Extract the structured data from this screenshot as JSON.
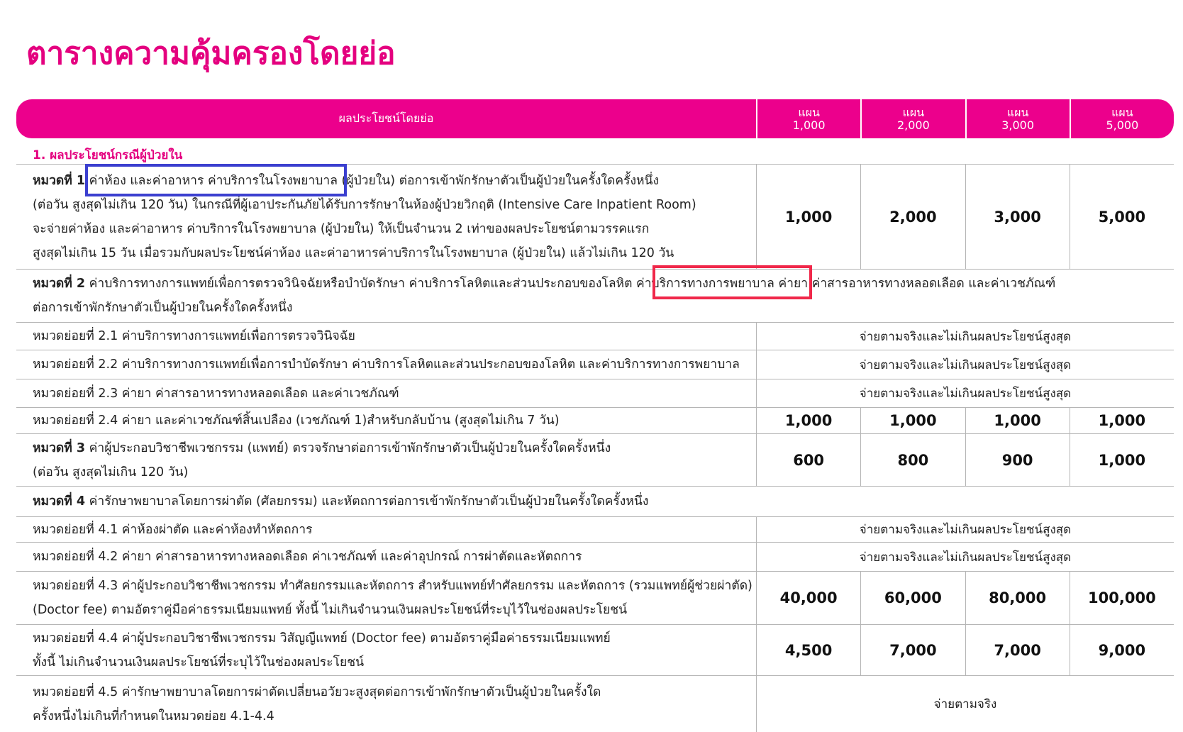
{
  "title": "ตารางความคุ้มครองโดยย่อ",
  "header": {
    "benefit_label": "ผลประโยชน์โดยย่อ",
    "plans": [
      {
        "prefix": "แผน",
        "amount": "1,000"
      },
      {
        "prefix": "แผน",
        "amount": "2,000"
      },
      {
        "prefix": "แผน",
        "amount": "3,000"
      },
      {
        "prefix": "แผน",
        "amount": "5,000"
      }
    ]
  },
  "section_label": "1. ผลประโยชน์กรณีผู้ป่วยใน",
  "rows": [
    {
      "bold": "หมวดที่ 1",
      "lines": [
        "ค่าห้อง และค่าอาหาร ค่าบริการในโรงพยาบาล (ผู้ป่วยใน) ต่อการเข้าพักรักษาตัวเป็นผู้ป่วยในครั้งใดครั้งหนึ่ง",
        "(ต่อวัน สูงสุดไม่เกิน 120 วัน) ในกรณีที่ผู้เอาประกันภัยได้รับการรักษาในห้องผู้ป่วยวิกฤติ (Intensive Care Inpatient Room)",
        "จะจ่ายค่าห้อง และค่าอาหาร ค่าบริการในโรงพยาบาล (ผู้ป่วยใน) ให้เป็นจำนวน 2 เท่าของผลประโยชน์ตามวรรคแรก",
        "สูงสุดไม่เกิน 15 วัน เมื่อรวมกับผลประโยชน์ค่าห้อง และค่าอาหารค่าบริการในโรงพยาบาล (ผู้ป่วยใน) แล้วไม่เกิน 120 วัน"
      ],
      "values": [
        "1,000",
        "2,000",
        "3,000",
        "5,000"
      ]
    },
    {
      "bold": "หมวดที่ 2",
      "lines": [
        "ค่าบริการทางการแพทย์เพื่อการตรวจวินิจฉัยหรือบำบัดรักษา ค่าบริการโลหิตและส่วนประกอบของโลหิต ค่าบริการทางการพยาบาล ค่ายา ค่าสารอาหารทางหลอดเลือด และค่าเวชภัณฑ์",
        "ต่อการเข้าพักรักษาตัวเป็นผู้ป่วยในครั้งใดครั้งหนึ่ง"
      ],
      "full": true
    },
    {
      "lines": [
        "หมวดย่อยที่ 2.1 ค่าบริการทางการแพทย์เพื่อการตรวจวินิจฉัย"
      ],
      "merged": "จ่ายตามจริงและไม่เกินผลประโยชน์สูงสุด"
    },
    {
      "lines": [
        "หมวดย่อยที่ 2.2 ค่าบริการทางการแพทย์เพื่อการบำบัดรักษา ค่าบริการโลหิตและส่วนประกอบของโลหิต และค่าบริการทางการพยาบาล"
      ],
      "merged": "จ่ายตามจริงและไม่เกินผลประโยชน์สูงสุด"
    },
    {
      "lines": [
        "หมวดย่อยที่ 2.3 ค่ายา ค่าสารอาหารทางหลอดเลือด และค่าเวชภัณฑ์"
      ],
      "merged": "จ่ายตามจริงและไม่เกินผลประโยชน์สูงสุด"
    },
    {
      "lines": [
        "หมวดย่อยที่ 2.4 ค่ายา และค่าเวชภัณฑ์สิ้นเปลือง (เวชภัณฑ์ 1)สำหรับกลับบ้าน (สูงสุดไม่เกิน 7 วัน)"
      ],
      "values": [
        "1,000",
        "1,000",
        "1,000",
        "1,000"
      ]
    },
    {
      "bold": "หมวดที่ 3",
      "lines": [
        "ค่าผู้ประกอบวิชาชีพเวชกรรม (แพทย์) ตรวจรักษาต่อการเข้าพักรักษาตัวเป็นผู้ป่วยในครั้งใดครั้งหนึ่ง",
        "(ต่อวัน สูงสุดไม่เกิน 120 วัน)"
      ],
      "values": [
        "600",
        "800",
        "900",
        "1,000"
      ]
    },
    {
      "bold": "หมวดที่ 4",
      "lines": [
        "ค่ารักษาพยาบาลโดยการผ่าตัด (ศัลยกรรม) และหัตถการต่อการเข้าพักรักษาตัวเป็นผู้ป่วยในครั้งใดครั้งหนึ่ง"
      ],
      "full": true
    },
    {
      "lines": [
        "หมวดย่อยที่ 4.1 ค่าห้องผ่าตัด และค่าห้องทำหัตถการ"
      ],
      "merged": "จ่ายตามจริงและไม่เกินผลประโยชน์สูงสุด"
    },
    {
      "lines": [
        "หมวดย่อยที่ 4.2 ค่ายา ค่าสารอาหารทางหลอดเลือด ค่าเวชภัณฑ์ และค่าอุปกรณ์ การผ่าตัดและหัตถการ"
      ],
      "merged": "จ่ายตามจริงและไม่เกินผลประโยชน์สูงสุด"
    },
    {
      "lines": [
        "หมวดย่อยที่ 4.3 ค่าผู้ประกอบวิชาชีพเวชกรรม ทำศัลยกรรมและหัตถการ สำหรับแพทย์ทำศัลยกรรม และหัตถการ (รวมแพทย์ผู้ช่วยผ่าตัด)",
        "(Doctor fee) ตามอัตราคู่มือค่าธรรมเนียมแพทย์ ทั้งนี้ ไม่เกินจำนวนเงินผลประโยชน์ที่ระบุไว้ในช่องผลประโยชน์"
      ],
      "values": [
        "40,000",
        "60,000",
        "80,000",
        "100,000"
      ]
    },
    {
      "lines": [
        "หมวดย่อยที่ 4.4 ค่าผู้ประกอบวิชาชีพเวชกรรม วิสัญญีแพทย์ (Doctor fee) ตามอัตราคู่มือค่าธรรมเนียมแพทย์",
        "ทั้งนี้ ไม่เกินจำนวนเงินผลประโยชน์ที่ระบุไว้ในช่องผลประโยชน์"
      ],
      "values": [
        "4,500",
        "7,000",
        "7,000",
        "9,000"
      ]
    },
    {
      "lines": [
        "หมวดย่อยที่ 4.5 ค่ารักษาพยาบาลโดยการผ่าตัดเปลี่ยนอวัยวะสูงสุดต่อการเข้าพักรักษาตัวเป็นผู้ป่วยในครั้งใด",
        "ครั้งหนึ่งไม่เกินที่กำหนดในหมวดย่อย 4.1-4.4"
      ],
      "merged": "จ่ายตามจริง"
    }
  ],
  "highlights": [
    {
      "color": "#3b3fcf"
    },
    {
      "color": "#f0284a"
    }
  ],
  "colors": {
    "brand": "#ec008c",
    "title": "#e4007f"
  }
}
